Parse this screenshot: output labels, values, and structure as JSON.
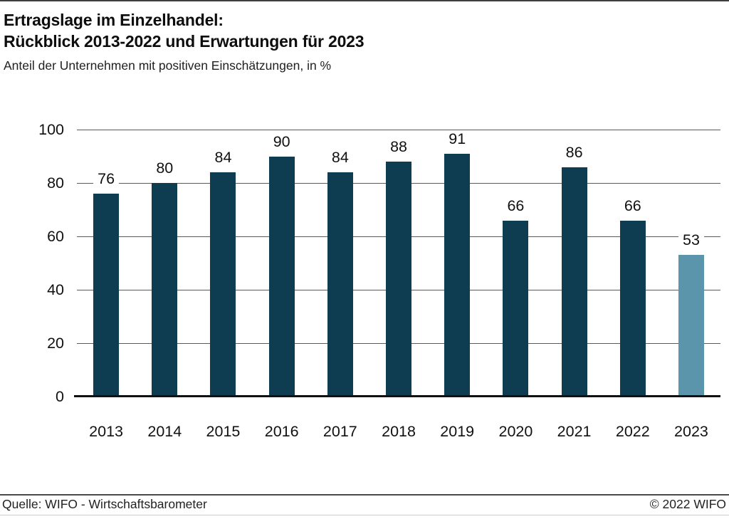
{
  "page": {
    "title_line1": "Ertragslage im Einzelhandel:",
    "title_line2": "Rückblick 2013-2022 und Erwartungen für 2023",
    "subtitle": "Anteil der Unternehmen mit positiven Einschätzungen, in %"
  },
  "chart_data": {
    "type": "bar",
    "title": "Ertragslage im Einzelhandel: Rückblick 2013-2022 und Erwartungen für 2023",
    "subtitle": "Anteil der Unternehmen mit positiven Einschätzungen, in %",
    "categories": [
      "2013",
      "2014",
      "2015",
      "2016",
      "2017",
      "2018",
      "2019",
      "2020",
      "2021",
      "2022",
      "2023"
    ],
    "values": [
      76,
      80,
      84,
      90,
      84,
      88,
      91,
      66,
      86,
      66,
      53
    ],
    "xlabel": "",
    "ylabel": "",
    "ylim": [
      0,
      100
    ],
    "yticks": [
      0,
      20,
      40,
      60,
      80,
      100
    ],
    "grid": "horizontal",
    "legend_position": "none",
    "bar_color": "#0e3c50",
    "highlight_category": "2023",
    "highlight_color": "#5a95ab",
    "gridline_color": "#5a5a5a",
    "baseline_color": "#111111"
  },
  "footer": {
    "source": "Quelle: WIFO - Wirtschaftsbarometer",
    "copyright": "© 2022 WIFO"
  }
}
